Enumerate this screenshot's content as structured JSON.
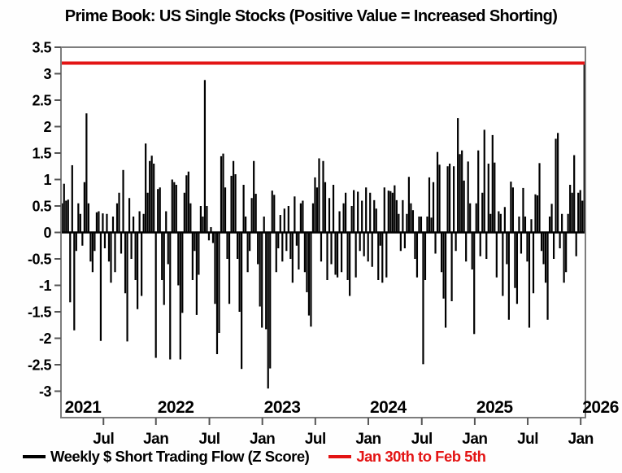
{
  "chart_data": {
    "type": "bar",
    "title": "Prime Book: US Single Stocks (Positive Value = Increased Shorting)",
    "xlabel": "",
    "ylabel": "",
    "ylim": [
      -3.5,
      3.5
    ],
    "grid": false,
    "legend_position": "bottom",
    "background_color": "#fefefe",
    "axis_border_color": "#7d7d7d",
    "bar_color": "#000000",
    "y_ticks": [
      {
        "value": 3.5,
        "label": "3.5"
      },
      {
        "value": 3,
        "label": "3"
      },
      {
        "value": 2.5,
        "label": "2.5"
      },
      {
        "value": 2,
        "label": "2"
      },
      {
        "value": 1.5,
        "label": "1.5"
      },
      {
        "value": 1,
        "label": "1"
      },
      {
        "value": 0.5,
        "label": "0.5"
      },
      {
        "value": 0,
        "label": "0"
      },
      {
        "value": -0.5,
        "label": "-0.5"
      },
      {
        "value": -1,
        "label": "-1"
      },
      {
        "value": -1.5,
        "label": "-1.5"
      },
      {
        "value": -2,
        "label": "-2"
      },
      {
        "value": -2.5,
        "label": "-2.5"
      },
      {
        "value": -3,
        "label": "-3"
      }
    ],
    "x_ticks": [
      {
        "f": 0.081,
        "label": "Jul"
      },
      {
        "f": 0.181,
        "label": "Jan"
      },
      {
        "f": 0.283,
        "label": "Jul"
      },
      {
        "f": 0.384,
        "label": "Jan"
      },
      {
        "f": 0.485,
        "label": "Jul"
      },
      {
        "f": 0.586,
        "label": "Jan"
      },
      {
        "f": 0.688,
        "label": "Jul"
      },
      {
        "f": 0.789,
        "label": "Jan"
      },
      {
        "f": 0.89,
        "label": "Jul"
      },
      {
        "f": 0.991,
        "label": "Jan"
      }
    ],
    "year_labels": [
      {
        "f": 0.004,
        "label": "2021"
      },
      {
        "f": 0.181,
        "label": "2022"
      },
      {
        "f": 0.384,
        "label": "2023"
      },
      {
        "f": 0.586,
        "label": "2024"
      },
      {
        "f": 0.789,
        "label": "2025"
      },
      {
        "f": 0.991,
        "label": "2026"
      }
    ],
    "reference_line": {
      "value": 3.2,
      "color": "#e31414",
      "label": "Jan 30th to Feb 5th"
    },
    "series": [
      {
        "name": "Weekly $ Short Trading Flow (Z Score)",
        "color": "#000000",
        "period": "weekly, Feb 2021 - Feb 5 2026",
        "values": [
          0.55,
          0.92,
          0.6,
          0.62,
          -1.32,
          1.27,
          -1.85,
          -0.35,
          0.55,
          0.35,
          -0.25,
          0.95,
          2.25,
          0.55,
          -0.55,
          -0.75,
          -0.35,
          0.38,
          0.4,
          -2.05,
          0.36,
          -0.3,
          0.35,
          -0.55,
          -0.95,
          0.3,
          -0.75,
          0.55,
          0.75,
          -0.4,
          1.18,
          -1.15,
          -2.06,
          0.65,
          -0.5,
          0.3,
          -0.9,
          -1.45,
          0.4,
          -1.2,
          0.35,
          1.68,
          0.75,
          1.35,
          1.45,
          1.3,
          -2.37,
          0.82,
          0.85,
          -0.9,
          -1.37,
          0.4,
          -0.6,
          -2.4,
          1.0,
          0.95,
          0.9,
          -1.0,
          -2.4,
          -1.52,
          0.75,
          1.08,
          1.15,
          0.55,
          -0.9,
          -0.35,
          -1.56,
          -0.8,
          0.5,
          0.3,
          2.88,
          0.5,
          -0.15,
          0.1,
          -0.2,
          -1.35,
          -2.3,
          -1.9,
          1.44,
          1.49,
          0.85,
          -0.5,
          -1.35,
          1.07,
          1.35,
          1.1,
          -0.5,
          -1.5,
          -2.58,
          0.9,
          0.3,
          -0.75,
          -0.35,
          0.65,
          1.35,
          0.73,
          -0.6,
          -1.4,
          -1.8,
          0.3,
          -1.83,
          -2.95,
          -2.57,
          0.79,
          0.71,
          -0.75,
          -0.3,
          0.33,
          -0.55,
          0.45,
          -0.35,
          0.5,
          -0.5,
          -0.95,
          0.68,
          -0.25,
          -0.7,
          0.55,
          0.6,
          -0.75,
          -1.13,
          -1.57,
          -1.78,
          0.55,
          1.04,
          0.85,
          1.4,
          -0.55,
          1.35,
          0.95,
          -0.9,
          0.65,
          -0.6,
          0.9,
          -0.8,
          -0.85,
          0.4,
          -0.75,
          0.55,
          0.75,
          -0.9,
          -1.2,
          0.5,
          0.8,
          -0.85,
          0.77,
          -0.35,
          0.6,
          -0.45,
          0.85,
          -0.55,
          0.75,
          -0.65,
          0.61,
          0.45,
          -0.9,
          -0.25,
          -0.95,
          0.85,
          -0.85,
          0.79,
          0.78,
          0.75,
          0.89,
          0.61,
          0.35,
          -0.35,
          0.61,
          -0.3,
          0.35,
          1.05,
          0.55,
          0.42,
          -0.5,
          -0.85,
          0.3,
          0.3,
          -2.49,
          -0.9,
          0.3,
          1.04,
          0.28,
          0.95,
          -0.4,
          1.52,
          1.28,
          -0.75,
          -1.25,
          -1.8,
          1.25,
          1.3,
          -1.3,
          1.25,
          -0.35,
          2.16,
          1.48,
          1.55,
          0.98,
          -0.55,
          1.34,
          0.55,
          -0.7,
          -1.92,
          0.55,
          1.55,
          -0.45,
          0.75,
          1.94,
          -0.5,
          1.3,
          0.35,
          1.84,
          1.32,
          -0.85,
          0.4,
          0.35,
          -1.2,
          0.48,
          -0.6,
          -1.65,
          0.96,
          0.85,
          -1.05,
          -1.35,
          0.3,
          -0.4,
          0.84,
          0.3,
          -0.55,
          -1.8,
          0.25,
          -1.15,
          0.72,
          0.7,
          1.31,
          -0.35,
          -0.6,
          -0.95,
          -1.65,
          0.3,
          0.54,
          -0.5,
          1.77,
          1.88,
          -0.3,
          0.35,
          -0.95,
          -0.75,
          0.35,
          0.9,
          0.75,
          1.46,
          -0.45,
          0.75,
          0.8,
          0.6,
          3.2
        ]
      }
    ]
  }
}
